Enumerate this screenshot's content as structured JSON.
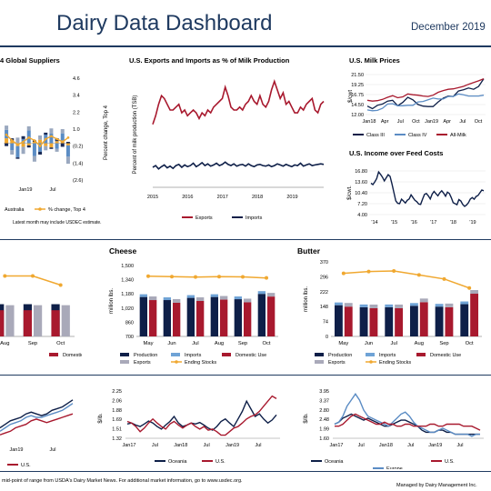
{
  "header": {
    "title": "Dairy Data Dashboard",
    "date": "December 2019",
    "colors": {
      "title": "#1f3a60",
      "rule": "#1f3a60"
    }
  },
  "footer": {
    "left": "mid-point of range from USDA's Dairy Market News. For additional market information, go to www.usdec.org.",
    "right": "Managed by Dairy Management Inc."
  },
  "chart_data": [
    {
      "id": "global-suppliers",
      "type": "bar",
      "title": "4 Global Suppliers",
      "x_ticks": [
        "Jan19",
        "Jul"
      ],
      "y2_label": "Percent change, Top 4",
      "y2_ticks": [
        "4.6",
        "3.4",
        "2.2",
        "1.0",
        "(0.2)",
        "(1.4)",
        "(2.6)"
      ],
      "ylim": [
        -2.6,
        4.6
      ],
      "legend": [
        "Australia",
        "% change, Top 4"
      ],
      "note": "Latest month may include USDEC estimate.",
      "series": [
        {
          "name": "Australia",
          "color": "#f0a830",
          "values": [
            0.35,
            0.2,
            -0.2,
            -0.25,
            -0.15,
            0.1,
            0.25,
            -0.2,
            -0.3,
            0.15,
            0.2,
            -0.15
          ]
        },
        {
          "name": "stack-b",
          "color": "#5b8cc4",
          "values": [
            0.6,
            -0.5,
            -0.8,
            0.3,
            0.9,
            -0.9,
            -0.6,
            0.6,
            0.7,
            -0.4,
            0.5,
            -0.8
          ]
        },
        {
          "name": "stack-c",
          "color": "#9aa8bf",
          "values": [
            0.3,
            -0.3,
            0.4,
            -0.5,
            0.3,
            -0.4,
            0.3,
            -0.3,
            0.35,
            -0.2,
            0.3,
            -0.5
          ]
        },
        {
          "name": "stack-d",
          "color": "#1a2a55",
          "values": [
            -0.2,
            0.15,
            -0.1,
            0.2,
            -0.15,
            0.1,
            -0.2,
            0.15,
            -0.1,
            0.2,
            -0.25,
            0.1
          ]
        },
        {
          "name": "% change, Top 4",
          "color": "#f0a830",
          "values": [
            0.6,
            0.2,
            -0.1,
            0.1,
            0.4,
            0.2,
            -0.2,
            0.3,
            0.5,
            0.3,
            0.1,
            0.4
          ]
        }
      ]
    },
    {
      "id": "exports-imports",
      "type": "line",
      "title": "U.S. Exports and Imports as % of Milk Production",
      "ylabel": "Percent of milk production (TSB)",
      "x_ticks": [
        "2015",
        "2016",
        "2017",
        "2018",
        "2019"
      ],
      "x_range": [
        2015,
        2019.9
      ],
      "ylim": [
        0,
        20
      ],
      "series": [
        {
          "name": "Exports",
          "color": "#a8192e",
          "values": [
            11.0,
            12.5,
            14.5,
            16.0,
            15.5,
            14.5,
            13.5,
            13.5,
            14.0,
            14.5,
            13.0,
            13.5,
            12.5,
            13.0,
            13.5,
            13.0,
            12.0,
            13.0,
            12.5,
            13.5,
            13.0,
            14.0,
            14.5,
            15.0,
            15.5,
            17.5,
            16.0,
            14.0,
            13.5,
            13.5,
            14.0,
            13.5,
            14.5,
            15.0,
            16.0,
            15.0,
            14.5,
            16.0,
            14.5,
            14.0,
            15.0,
            17.0,
            18.5,
            17.0,
            15.5,
            16.5,
            14.5,
            15.0,
            14.0,
            13.0,
            13.0,
            14.0,
            13.5,
            14.5,
            15.0,
            15.5,
            13.5,
            13.0,
            14.5,
            15.0
          ]
        },
        {
          "name": "Imports",
          "color": "#0e1f48",
          "values": [
            3.5,
            3.8,
            3.2,
            3.6,
            3.9,
            3.4,
            3.7,
            3.3,
            3.8,
            4.0,
            3.5,
            3.9,
            3.6,
            3.8,
            4.2,
            3.6,
            3.9,
            4.3,
            3.8,
            4.1,
            3.7,
            3.9,
            4.2,
            3.8,
            4.0,
            4.4,
            4.0,
            3.8,
            4.1,
            3.7,
            3.9,
            4.0,
            3.7,
            4.1,
            3.8,
            3.6,
            3.9,
            4.0,
            3.8,
            3.7,
            3.9,
            3.6,
            3.8,
            4.1,
            3.9,
            3.7,
            4.0,
            3.8,
            3.6,
            3.9,
            3.8,
            4.2,
            3.7,
            3.9,
            4.1,
            3.8,
            3.9,
            4.0,
            4.1,
            4.0
          ]
        }
      ]
    },
    {
      "id": "milk-prices",
      "type": "line",
      "title": "U.S. Milk Prices",
      "ylabel": "$/cwt",
      "x_ticks": [
        "Jan18",
        "Apr",
        "Jul",
        "Oct",
        "Jan19",
        "Apr",
        "Jul",
        "Oct"
      ],
      "y_ticks": [
        "21.50",
        "19.25",
        "16.75",
        "14.50",
        "12.00"
      ],
      "ylim": [
        12.0,
        21.5
      ],
      "series": [
        {
          "name": "Class III",
          "color": "#0e1f48",
          "values": [
            14.0,
            13.4,
            14.2,
            14.5,
            15.2,
            15.4,
            14.1,
            14.9,
            16.1,
            15.5,
            14.4,
            14.0,
            13.9,
            13.9,
            15.0,
            15.9,
            16.4,
            16.3,
            17.6,
            17.9,
            18.3,
            18.0,
            18.7,
            20.5
          ]
        },
        {
          "name": "Class IV",
          "color": "#5b8cc4",
          "values": [
            13.1,
            12.9,
            13.0,
            13.5,
            14.5,
            14.6,
            14.1,
            14.1,
            14.2,
            14.2,
            15.0,
            15.1,
            15.5,
            15.9,
            15.7,
            15.7,
            16.3,
            16.3,
            16.9,
            16.7,
            16.4,
            16.4,
            16.4,
            16.6
          ]
        },
        {
          "name": "All-Milk",
          "color": "#a8192e",
          "values": [
            15.4,
            15.2,
            15.3,
            15.6,
            16.1,
            16.5,
            16.0,
            16.2,
            16.9,
            16.7,
            16.6,
            16.4,
            16.3,
            16.6,
            17.3,
            17.7,
            18.0,
            18.1,
            18.4,
            18.7,
            19.2,
            19.6,
            20.0,
            20.5
          ]
        }
      ]
    },
    {
      "id": "income-over-feed",
      "type": "line",
      "title": "U.S. Income over Feed Costs",
      "ylabel": "$/cwt.",
      "x_ticks": [
        "'14",
        "'15",
        "'16",
        "'17",
        "'18",
        "'19"
      ],
      "y_ticks": [
        "16.80",
        "13.60",
        "10.40",
        "7.20",
        "4.00"
      ],
      "ylim": [
        4.0,
        16.8
      ],
      "series": [
        {
          "name": "Income over Feed",
          "color": "#0e1f48",
          "values": [
            13.2,
            12.8,
            13.6,
            14.6,
            16.5,
            15.8,
            15.0,
            13.9,
            14.8,
            15.7,
            15.2,
            13.0,
            10.5,
            8.0,
            7.3,
            7.2,
            8.5,
            8.0,
            7.4,
            8.2,
            8.6,
            9.8,
            9.0,
            8.2,
            7.8,
            7.1,
            7.0,
            8.5,
            9.9,
            10.2,
            9.5,
            8.6,
            10.0,
            10.8,
            10.1,
            9.5,
            10.4,
            11.0,
            10.3,
            9.4,
            10.6,
            10.2,
            9.0,
            7.5,
            7.2,
            6.9,
            8.4,
            8.0,
            7.0,
            6.4,
            6.8,
            7.5,
            8.6,
            9.0,
            8.5,
            9.3,
            9.6,
            10.4,
            11.2,
            11.0
          ]
        }
      ]
    },
    {
      "id": "cheese",
      "type": "bar",
      "title": "Cheese",
      "ylabel": "million lbs.",
      "categories": [
        "May",
        "Jun",
        "Jul",
        "Aug",
        "Sep",
        "Oct"
      ],
      "y_ticks": [
        "1,500",
        "1,340",
        "1,180",
        "1,020",
        "860",
        "700"
      ],
      "ylim": [
        700,
        1500
      ],
      "legend": [
        "Production",
        "Imports",
        "Domestic Use",
        "Exports",
        "Ending Stocks"
      ],
      "series": [
        {
          "name": "Production",
          "color": "#0e1f48",
          "values": [
            1145,
            1110,
            1135,
            1145,
            1120,
            1180
          ]
        },
        {
          "name": "Domestic Use",
          "color": "#a8192e",
          "values": [
            1110,
            1080,
            1100,
            1115,
            1085,
            1150
          ]
        },
        {
          "name": "Exports",
          "color": "#a9a9b9",
          "values": [
            30,
            28,
            25,
            30,
            28,
            32
          ]
        },
        {
          "name": "Imports",
          "color": "#6fa3d6",
          "values": [
            15,
            14,
            15,
            15,
            14,
            15
          ]
        },
        {
          "name": "Ending Stocks",
          "color": "#f0a830",
          "values": [
            1380,
            1375,
            1370,
            1375,
            1372,
            1360
          ]
        }
      ]
    },
    {
      "id": "butter",
      "type": "bar",
      "title": "Butter",
      "ylabel": "million lbs.",
      "categories": [
        "May",
        "Jun",
        "Jul",
        "Aug",
        "Sep",
        "Oct"
      ],
      "y_ticks": [
        "370",
        "296",
        "222",
        "148",
        "74",
        "0"
      ],
      "ylim": [
        0,
        370
      ],
      "legend": [
        "Production",
        "Imports",
        "Domestic Use",
        "Exports",
        "Ending Stocks"
      ],
      "series": [
        {
          "name": "Production",
          "color": "#0e1f48",
          "values": [
            155,
            145,
            145,
            152,
            148,
            160
          ]
        },
        {
          "name": "Domestic Use",
          "color": "#a8192e",
          "values": [
            148,
            140,
            140,
            170,
            145,
            212
          ]
        },
        {
          "name": "Exports",
          "color": "#a9a9b9",
          "values": [
            4,
            3,
            3,
            4,
            3,
            4
          ]
        },
        {
          "name": "Imports",
          "color": "#6fa3d6",
          "values": [
            8,
            8,
            7,
            8,
            8,
            8
          ]
        },
        {
          "name": "Ending Stocks",
          "color": "#f0a830",
          "values": [
            313,
            322,
            325,
            305,
            285,
            240
          ]
        }
      ]
    },
    {
      "id": "global-price-1",
      "type": "line",
      "x_ticks": [
        "Jan19",
        "Jul"
      ],
      "legend": [
        "U.S."
      ],
      "series": [
        {
          "name": "stack-a",
          "color": "#0e1f48",
          "values": [
            1.5,
            1.6,
            1.7,
            1.75,
            1.8,
            1.9,
            1.95,
            1.9,
            1.85,
            1.9,
            2.0,
            2.05,
            2.1,
            2.2,
            2.3
          ]
        },
        {
          "name": "stack-b",
          "color": "#5b8cc4",
          "values": [
            1.4,
            1.5,
            1.6,
            1.65,
            1.7,
            1.8,
            1.85,
            1.8,
            1.8,
            1.85,
            1.9,
            1.95,
            2.0,
            2.1,
            2.2
          ]
        },
        {
          "name": "U.S.",
          "color": "#a8192e",
          "values": [
            1.3,
            1.35,
            1.4,
            1.5,
            1.55,
            1.6,
            1.7,
            1.75,
            1.7,
            1.65,
            1.7,
            1.75,
            1.8,
            1.85,
            1.9
          ]
        }
      ]
    },
    {
      "id": "global-price-2",
      "type": "line",
      "ylabel": "$/lb.",
      "x_ticks": [
        "Jan17",
        "Jul",
        "Jan18",
        "Jul",
        "Jan19",
        "Jul"
      ],
      "y_ticks": [
        "2.25",
        "2.06",
        "1.88",
        "1.69",
        "1.51",
        "1.32"
      ],
      "ylim": [
        1.32,
        2.25
      ],
      "legend": [
        "Oceania",
        "U.S."
      ],
      "series": [
        {
          "name": "Oceania",
          "color": "#0e1f48",
          "values": [
            1.6,
            1.62,
            1.58,
            1.55,
            1.6,
            1.66,
            1.62,
            1.55,
            1.5,
            1.58,
            1.65,
            1.75,
            1.62,
            1.55,
            1.58,
            1.62,
            1.6,
            1.63,
            1.58,
            1.52,
            1.48,
            1.55,
            1.65,
            1.7,
            1.62,
            1.55,
            1.7,
            1.85,
            2.05,
            1.9,
            1.75,
            1.8,
            1.7,
            1.62,
            1.68,
            1.78
          ]
        },
        {
          "name": "U.S.",
          "color": "#a8192e",
          "values": [
            1.65,
            1.62,
            1.55,
            1.45,
            1.52,
            1.62,
            1.7,
            1.62,
            1.55,
            1.5,
            1.6,
            1.65,
            1.58,
            1.52,
            1.58,
            1.62,
            1.55,
            1.5,
            1.55,
            1.48,
            1.5,
            1.45,
            1.38,
            1.38,
            1.45,
            1.52,
            1.55,
            1.62,
            1.7,
            1.75,
            1.78,
            1.85,
            1.95,
            2.05,
            2.15,
            2.1
          ]
        }
      ]
    },
    {
      "id": "global-price-3",
      "type": "line",
      "ylabel": "$/lb.",
      "x_ticks": [
        "Jan17",
        "Jul",
        "Jan18",
        "Jul",
        "Jan19",
        "Jul"
      ],
      "y_ticks": [
        "3.95",
        "3.37",
        "2.80",
        "2.48",
        "1.99",
        "1.60"
      ],
      "ylim": [
        1.6,
        3.95
      ],
      "legend": [
        "Oceania",
        "Europe",
        "U.S."
      ],
      "series": [
        {
          "name": "Oceania",
          "color": "#0e1f48",
          "values": [
            2.3,
            2.4,
            2.6,
            2.7,
            2.8,
            2.7,
            2.6,
            2.5,
            2.6,
            2.5,
            2.4,
            2.3,
            2.2,
            2.2,
            2.3,
            2.4,
            2.5,
            2.5,
            2.4,
            2.3,
            2.2,
            2.0,
            1.9,
            1.9,
            1.9,
            2.0,
            2.0,
            1.9,
            1.9,
            1.8,
            1.8,
            1.8,
            1.8,
            1.8,
            1.8,
            1.8
          ]
        },
        {
          "name": "Europe",
          "color": "#5b8cc4",
          "values": [
            2.3,
            2.4,
            2.7,
            3.2,
            3.5,
            3.8,
            3.5,
            3.0,
            2.7,
            2.6,
            2.5,
            2.4,
            2.3,
            2.2,
            2.4,
            2.6,
            2.8,
            2.9,
            2.7,
            2.4,
            2.2,
            2.1,
            2.0,
            1.9,
            1.9,
            2.0,
            2.1,
            2.0,
            1.9,
            1.8,
            1.8,
            1.8,
            1.8,
            1.7,
            1.8,
            1.8
          ]
        },
        {
          "name": "U.S.",
          "color": "#a8192e",
          "values": [
            2.2,
            2.2,
            2.3,
            2.5,
            2.7,
            2.8,
            2.7,
            2.6,
            2.5,
            2.4,
            2.3,
            2.3,
            2.4,
            2.3,
            2.3,
            2.2,
            2.2,
            2.3,
            2.3,
            2.2,
            2.2,
            2.2,
            2.2,
            2.3,
            2.3,
            2.2,
            2.2,
            2.3,
            2.3,
            2.3,
            2.3,
            2.2,
            2.2,
            2.2,
            2.1,
            2.0
          ]
        }
      ]
    }
  ]
}
